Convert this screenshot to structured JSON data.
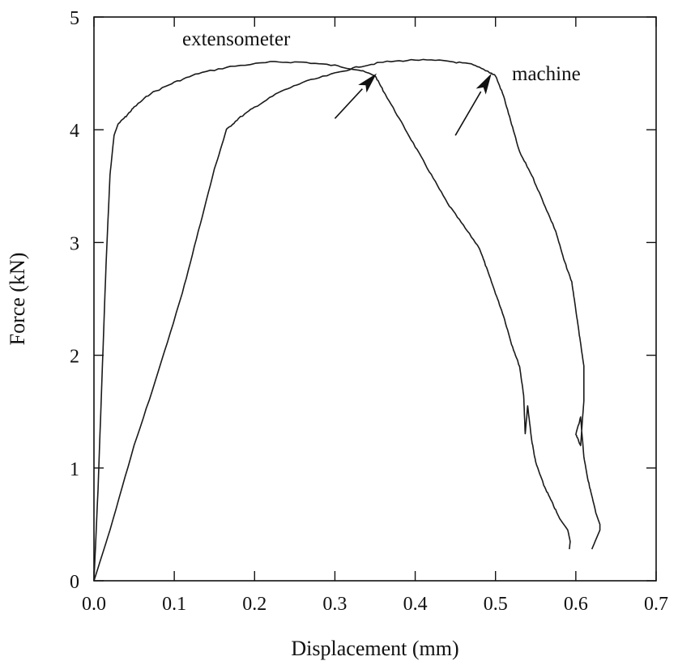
{
  "chart_data": {
    "type": "line",
    "title": "",
    "xlabel": "Displacement (mm)",
    "ylabel": "Force (kN)",
    "xlim": [
      0.0,
      0.7
    ],
    "ylim": [
      0,
      5
    ],
    "grid": false,
    "x_ticks": [
      "0.0",
      "0.1",
      "0.2",
      "0.3",
      "0.4",
      "0.5",
      "0.6",
      "0.7"
    ],
    "y_ticks": [
      "0",
      "1",
      "2",
      "3",
      "4",
      "5"
    ],
    "series": [
      {
        "name": "extensometer",
        "points": [
          [
            0.0,
            0
          ],
          [
            0.005,
            0.8
          ],
          [
            0.01,
            1.8
          ],
          [
            0.015,
            2.8
          ],
          [
            0.02,
            3.6
          ],
          [
            0.025,
            3.95
          ],
          [
            0.03,
            4.05
          ],
          [
            0.04,
            4.12
          ],
          [
            0.05,
            4.2
          ],
          [
            0.07,
            4.32
          ],
          [
            0.1,
            4.42
          ],
          [
            0.13,
            4.5
          ],
          [
            0.17,
            4.56
          ],
          [
            0.22,
            4.6
          ],
          [
            0.26,
            4.6
          ],
          [
            0.3,
            4.57
          ],
          [
            0.33,
            4.53
          ],
          [
            0.35,
            4.48
          ],
          [
            0.36,
            4.35
          ],
          [
            0.38,
            4.1
          ],
          [
            0.4,
            3.85
          ],
          [
            0.42,
            3.6
          ],
          [
            0.44,
            3.35
          ],
          [
            0.46,
            3.15
          ],
          [
            0.48,
            2.95
          ],
          [
            0.49,
            2.75
          ],
          [
            0.5,
            2.55
          ],
          [
            0.51,
            2.35
          ],
          [
            0.52,
            2.1
          ],
          [
            0.53,
            1.9
          ],
          [
            0.535,
            1.65
          ],
          [
            0.537,
            1.3
          ],
          [
            0.54,
            1.55
          ],
          [
            0.545,
            1.25
          ],
          [
            0.55,
            1.05
          ],
          [
            0.56,
            0.85
          ],
          [
            0.57,
            0.7
          ],
          [
            0.58,
            0.55
          ],
          [
            0.59,
            0.45
          ],
          [
            0.593,
            0.35
          ],
          [
            0.592,
            0.28
          ]
        ]
      },
      {
        "name": "machine",
        "points": [
          [
            0.0,
            0
          ],
          [
            0.02,
            0.45
          ],
          [
            0.05,
            1.2
          ],
          [
            0.08,
            1.85
          ],
          [
            0.11,
            2.55
          ],
          [
            0.13,
            3.1
          ],
          [
            0.15,
            3.65
          ],
          [
            0.165,
            4.0
          ],
          [
            0.18,
            4.1
          ],
          [
            0.2,
            4.2
          ],
          [
            0.23,
            4.33
          ],
          [
            0.26,
            4.42
          ],
          [
            0.3,
            4.5
          ],
          [
            0.33,
            4.56
          ],
          [
            0.36,
            4.6
          ],
          [
            0.4,
            4.62
          ],
          [
            0.44,
            4.61
          ],
          [
            0.47,
            4.58
          ],
          [
            0.49,
            4.52
          ],
          [
            0.5,
            4.48
          ],
          [
            0.51,
            4.3
          ],
          [
            0.52,
            4.05
          ],
          [
            0.53,
            3.8
          ],
          [
            0.545,
            3.6
          ],
          [
            0.56,
            3.35
          ],
          [
            0.575,
            3.1
          ],
          [
            0.585,
            2.85
          ],
          [
            0.595,
            2.65
          ],
          [
            0.6,
            2.4
          ],
          [
            0.605,
            2.15
          ],
          [
            0.61,
            1.9
          ],
          [
            0.61,
            1.6
          ],
          [
            0.606,
            1.2
          ],
          [
            0.6,
            1.3
          ],
          [
            0.606,
            1.45
          ],
          [
            0.61,
            1.1
          ],
          [
            0.615,
            0.9
          ],
          [
            0.62,
            0.75
          ],
          [
            0.625,
            0.6
          ],
          [
            0.63,
            0.5
          ],
          [
            0.63,
            0.45
          ],
          [
            0.62,
            0.28
          ]
        ]
      }
    ],
    "annotations": [
      {
        "text": "extensometer",
        "series": "extensometer"
      },
      {
        "text": "machine",
        "series": "machine"
      }
    ],
    "arrows": [
      {
        "from": [
          0.3,
          4.1
        ],
        "to": [
          0.352,
          4.5
        ]
      },
      {
        "from": [
          0.45,
          3.95
        ],
        "to": [
          0.495,
          4.5
        ]
      }
    ]
  }
}
